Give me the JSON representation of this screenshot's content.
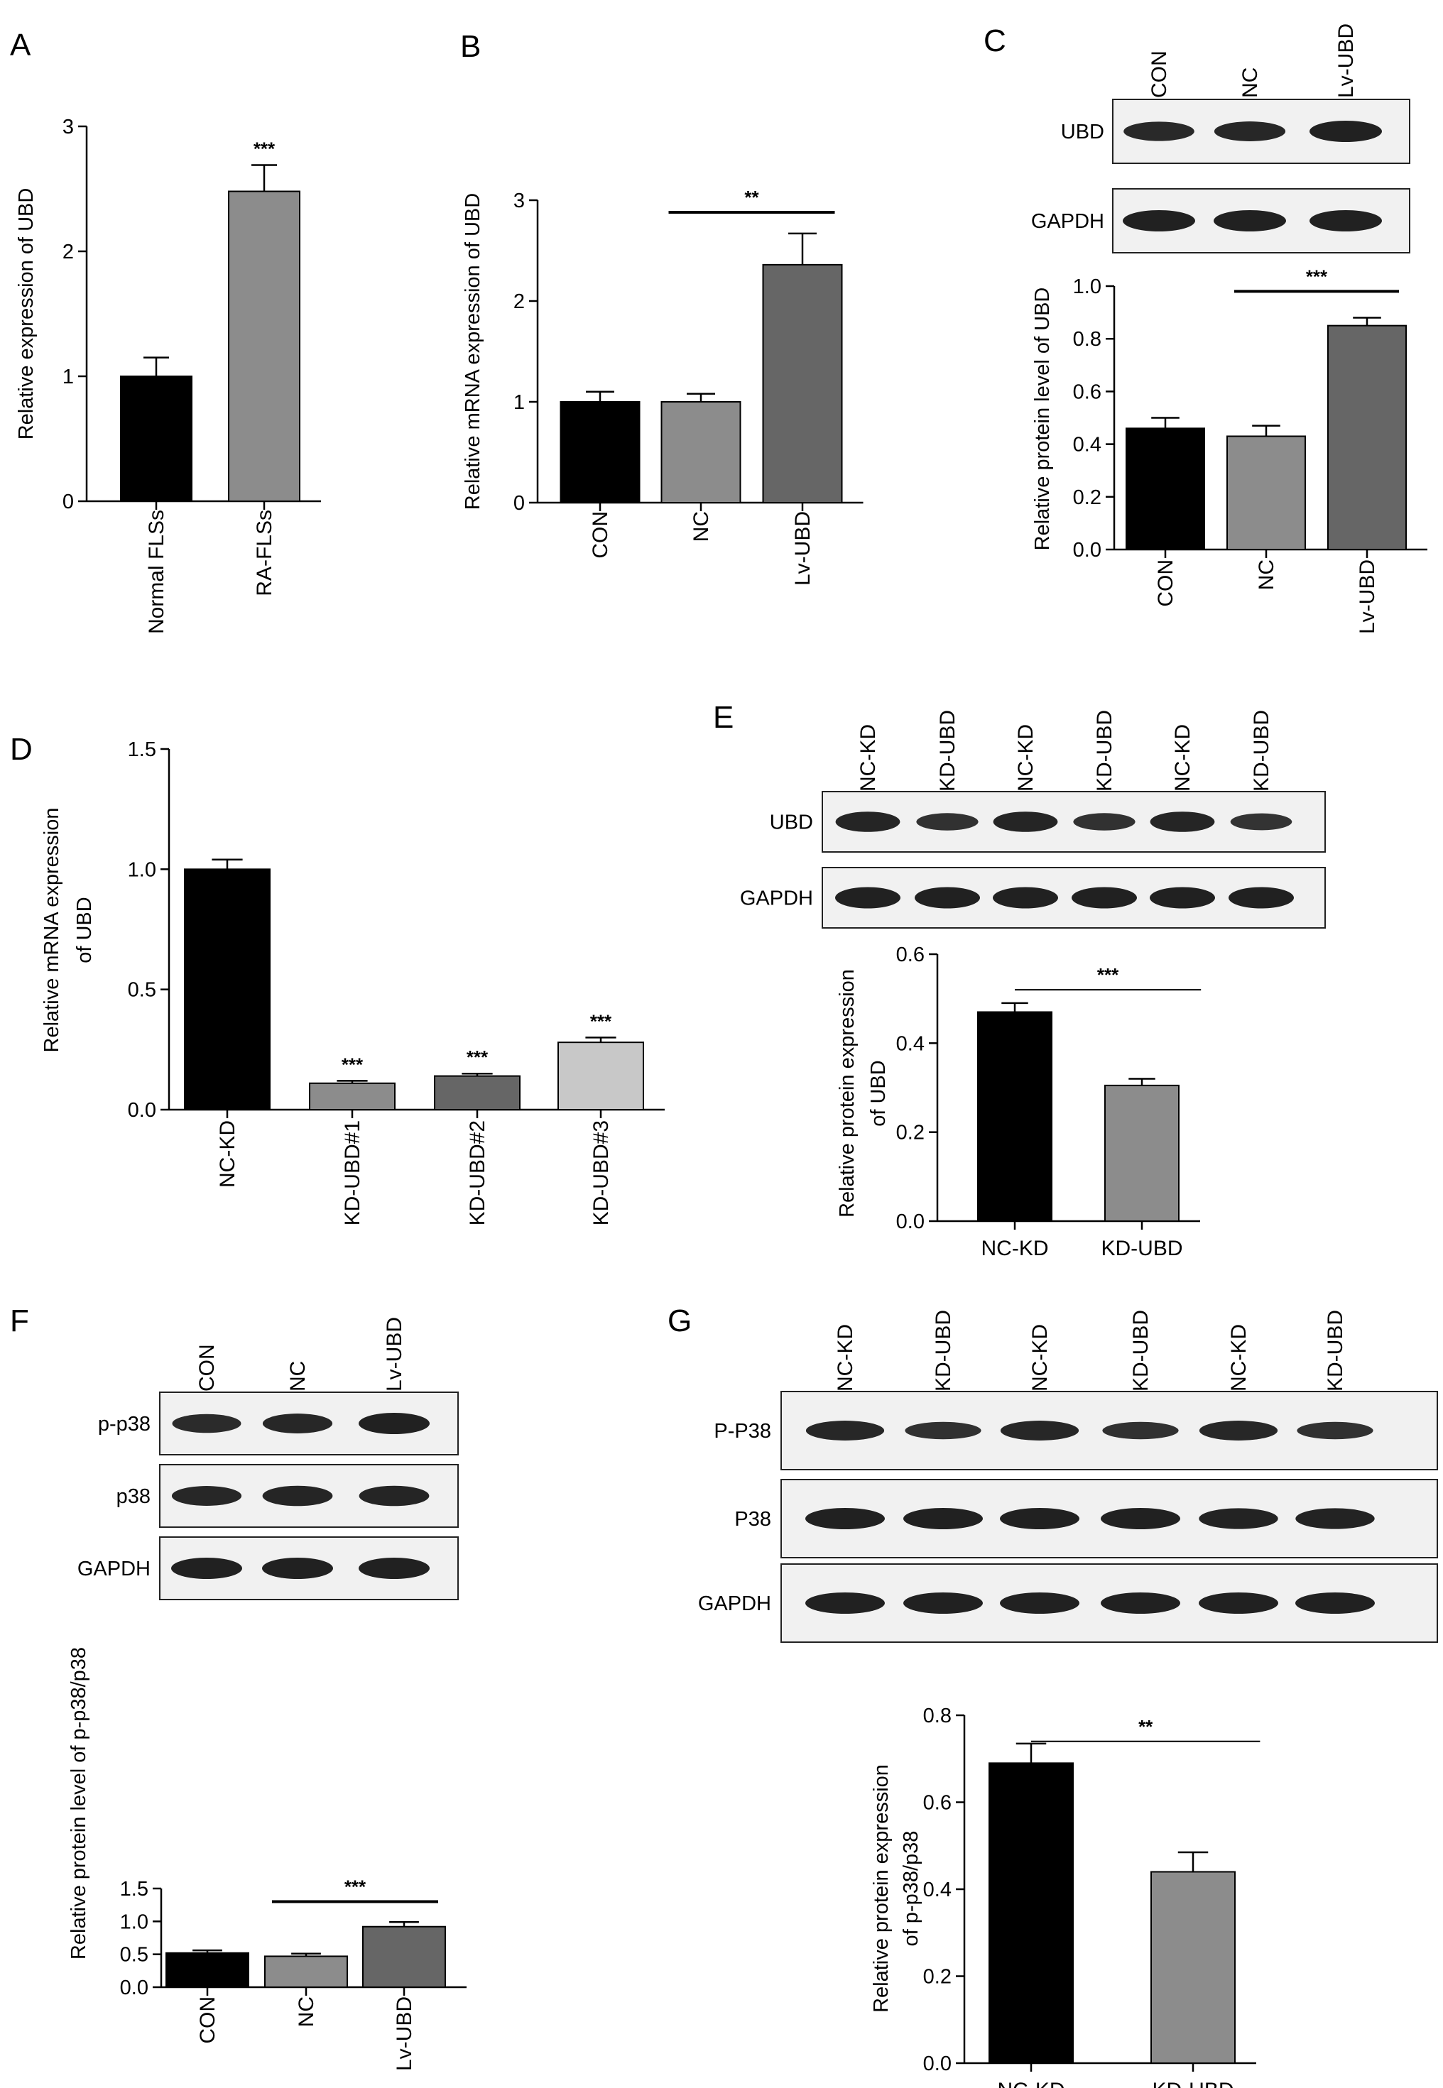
{
  "panels": [
    {
      "id": "A",
      "letter": "A",
      "kind": "chart",
      "chart_data": {
        "type": "bar",
        "categories": [
          "Normal FLSs",
          "RA-FLSs"
        ],
        "values": [
          1.0,
          2.48
        ],
        "errors": [
          0.15,
          0.21
        ],
        "colors": [
          "#000000",
          "#8c8c8c"
        ],
        "xlabel": "",
        "ylabel": "Relative expression of UBD",
        "ylim": [
          0,
          3
        ],
        "yticks": [
          0,
          1,
          2,
          3
        ],
        "tick_labels": [
          "0",
          "1",
          "2",
          "3"
        ],
        "rotate_labels": true,
        "stars": [
          {
            "bar": 1,
            "text": "***"
          }
        ],
        "brackets": []
      }
    },
    {
      "id": "B",
      "letter": "B",
      "kind": "chart",
      "chart_data": {
        "type": "bar",
        "categories": [
          "CON",
          "NC",
          "Lv-UBD"
        ],
        "values": [
          1.0,
          1.0,
          2.36
        ],
        "errors": [
          0.1,
          0.08,
          0.31
        ],
        "colors": [
          "#000000",
          "#8c8c8c",
          "#666666"
        ],
        "xlabel": "",
        "ylabel": "Relative mRNA expression of UBD",
        "ylim": [
          0,
          3
        ],
        "yticks": [
          0,
          1,
          2,
          3
        ],
        "tick_labels": [
          "0",
          "1",
          "2",
          "3"
        ],
        "rotate_labels": true,
        "stars": [],
        "brackets": [
          {
            "from": 1,
            "to": 2,
            "text": "**",
            "y": 2.88
          }
        ]
      }
    },
    {
      "id": "C",
      "letter": "C",
      "kind": "chart",
      "blot": {
        "lanes": [
          "CON",
          "NC",
          "Lv-UBD"
        ],
        "rows": [
          {
            "label": "UBD",
            "intensities": [
              0.8,
              0.85,
              1.0
            ]
          },
          {
            "label": "GAPDH",
            "intensities": [
              1.0,
              1.0,
              1.0
            ]
          }
        ]
      },
      "chart_data": {
        "type": "bar",
        "categories": [
          "CON",
          "NC",
          "Lv-UBD"
        ],
        "values": [
          0.46,
          0.43,
          0.85
        ],
        "errors": [
          0.04,
          0.04,
          0.03
        ],
        "colors": [
          "#000000",
          "#8c8c8c",
          "#666666"
        ],
        "xlabel": "",
        "ylabel": "Relative protein level of UBD",
        "ylim": [
          0,
          1.0
        ],
        "yticks": [
          0,
          0.2,
          0.4,
          0.6,
          0.8,
          1.0
        ],
        "tick_labels": [
          "0.0",
          "0.2",
          "0.4",
          "0.6",
          "0.8",
          "1.0"
        ],
        "rotate_labels": true,
        "stars": [],
        "brackets": [
          {
            "from": 1,
            "to": 2,
            "text": "***",
            "y": 0.98
          }
        ]
      }
    },
    {
      "id": "D",
      "letter": "D",
      "kind": "chart",
      "chart_data": {
        "type": "bar",
        "categories": [
          "NC-KD",
          "KD-UBD#1",
          "KD-UBD#2",
          "KD-UBD#3"
        ],
        "values": [
          1.0,
          0.11,
          0.14,
          0.28
        ],
        "errors": [
          0.04,
          0.01,
          0.01,
          0.02
        ],
        "colors": [
          "#000000",
          "#8c8c8c",
          "#666666",
          "#c8c8c8"
        ],
        "xlabel": "",
        "ylabel": "Relative mRNA expression of UBD",
        "ylabel_lines": [
          "Relative mRNA expression",
          "of UBD"
        ],
        "ylim": [
          0,
          1.5
        ],
        "yticks": [
          0,
          0.5,
          1.0,
          1.5
        ],
        "tick_labels": [
          "0.0",
          "0.5",
          "1.0",
          "1.5"
        ],
        "rotate_labels": true,
        "stars": [
          {
            "bar": 1,
            "text": "***"
          },
          {
            "bar": 2,
            "text": "***"
          },
          {
            "bar": 3,
            "text": "***"
          }
        ],
        "brackets": []
      }
    },
    {
      "id": "E",
      "letter": "E",
      "kind": "chart",
      "blot": {
        "lanes": [
          "NC-KD",
          "KD-UBD",
          "NC-KD",
          "KD-UBD",
          "NC-KD",
          "KD-UBD"
        ],
        "rows": [
          {
            "label": "UBD",
            "intensities": [
              0.9,
              0.6,
              0.9,
              0.6,
              0.9,
              0.55
            ]
          },
          {
            "label": "GAPDH",
            "intensities": [
              1.0,
              1.0,
              1.0,
              1.0,
              1.0,
              1.0
            ]
          }
        ]
      },
      "chart_data": {
        "type": "bar",
        "categories": [
          "NC-KD",
          "KD-UBD"
        ],
        "values": [
          0.47,
          0.305
        ],
        "errors": [
          0.02,
          0.015
        ],
        "colors": [
          "#000000",
          "#8c8c8c"
        ],
        "xlabel": "",
        "ylabel": "Relative protein expression of UBD",
        "ylabel_lines": [
          "Relative protein expression",
          "of UBD"
        ],
        "ylim": [
          0,
          0.6
        ],
        "yticks": [
          0,
          0.2,
          0.4,
          0.6
        ],
        "tick_labels": [
          "0.0",
          "0.2",
          "0.4",
          "0.6"
        ],
        "rotate_labels": false,
        "stars": [],
        "brackets": [
          {
            "from": 0,
            "to": 1,
            "text": "***",
            "y": 0.52,
            "thin": true
          }
        ]
      }
    },
    {
      "id": "F",
      "letter": "F",
      "kind": "chart",
      "blot": {
        "lanes": [
          "CON",
          "NC",
          "Lv-UBD"
        ],
        "rows": [
          {
            "label": "p-p38",
            "intensities": [
              0.75,
              0.85,
              1.0
            ]
          },
          {
            "label": "p38",
            "intensities": [
              0.85,
              0.9,
              0.9
            ]
          },
          {
            "label": "GAPDH",
            "intensities": [
              1.0,
              1.0,
              1.0
            ]
          }
        ]
      },
      "chart_data": {
        "type": "bar",
        "categories": [
          "CON",
          "NC",
          "Lv-UBD"
        ],
        "values": [
          0.52,
          0.47,
          0.92
        ],
        "errors": [
          0.04,
          0.04,
          0.07
        ],
        "colors": [
          "#000000",
          "#8c8c8c",
          "#666666"
        ],
        "xlabel": "",
        "ylabel": "Relative protein level of p-p38/p38",
        "ylim": [
          0,
          1.5
        ],
        "yticks": [
          0,
          0.5,
          1.0,
          1.5
        ],
        "tick_labels": [
          "0.0",
          "0.5",
          "1.0",
          "1.5"
        ],
        "rotate_labels": true,
        "stars": [],
        "brackets": [
          {
            "from": 1,
            "to": 2,
            "text": "***",
            "y": 1.3
          }
        ]
      }
    },
    {
      "id": "G",
      "letter": "G",
      "kind": "chart",
      "blot": {
        "lanes": [
          "NC-KD",
          "KD-UBD",
          "NC-KD",
          "KD-UBD",
          "NC-KD",
          "KD-UBD"
        ],
        "rows": [
          {
            "label": "P-P38",
            "intensities": [
              0.85,
              0.6,
              0.85,
              0.6,
              0.85,
              0.6
            ]
          },
          {
            "label": "P38",
            "intensities": [
              1.0,
              1.0,
              1.0,
              1.0,
              0.95,
              0.95
            ]
          },
          {
            "label": "GAPDH",
            "intensities": [
              1.0,
              1.0,
              1.0,
              1.0,
              1.0,
              1.0
            ]
          }
        ]
      },
      "chart_data": {
        "type": "bar",
        "categories": [
          "NC-KD",
          "KD-UBD"
        ],
        "values": [
          0.69,
          0.44
        ],
        "errors": [
          0.045,
          0.045
        ],
        "colors": [
          "#000000",
          "#8c8c8c"
        ],
        "xlabel": "",
        "ylabel": "Relative protein expression of p-p38/p38",
        "ylabel_lines": [
          "Relative protein expression",
          "of p-p38/p38"
        ],
        "ylim": [
          0,
          0.8
        ],
        "yticks": [
          0,
          0.2,
          0.4,
          0.6,
          0.8
        ],
        "tick_labels": [
          "0.0",
          "0.2",
          "0.4",
          "0.6",
          "0.8"
        ],
        "rotate_labels": false,
        "stars": [],
        "brackets": [
          {
            "from": 0,
            "to": 1,
            "text": "**",
            "y": 0.74,
            "thin": true
          }
        ]
      }
    }
  ]
}
